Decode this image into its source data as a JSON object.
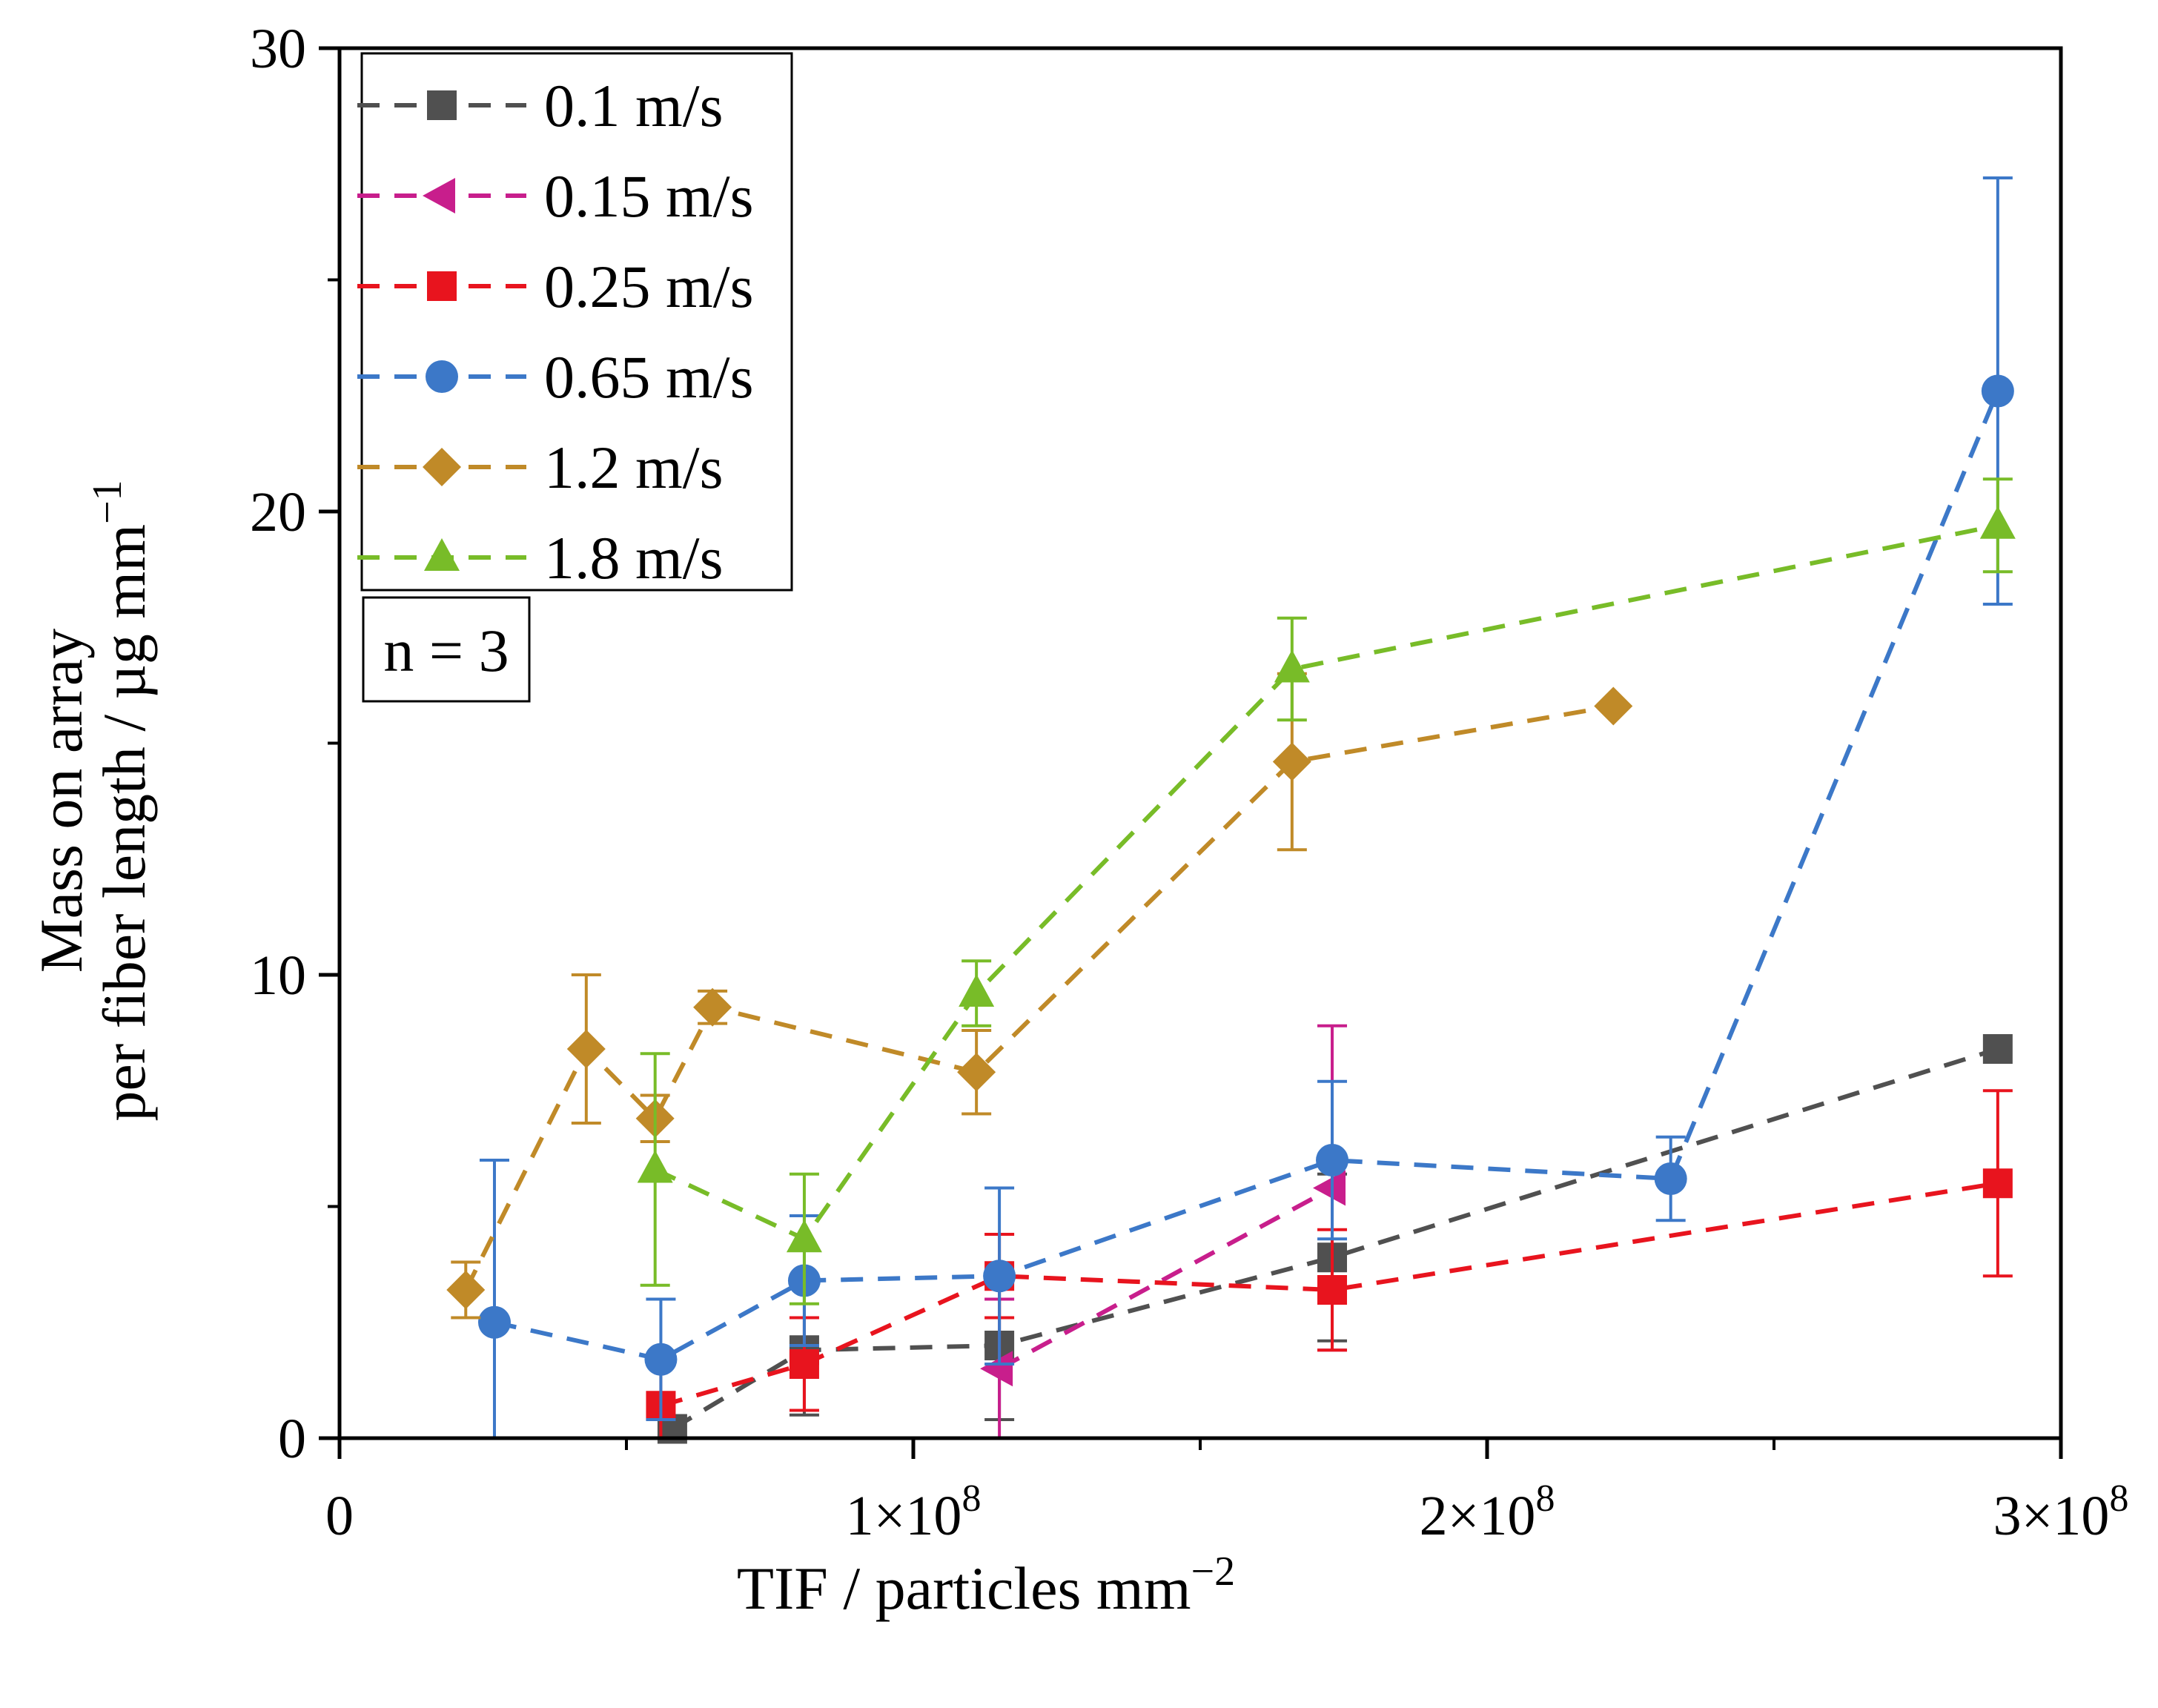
{
  "chart_data": {
    "type": "scatter",
    "title": "",
    "xlabel_main": "TIF / particles mm",
    "xlabel_sup": "−2",
    "ylabel_line1": "Mass on array",
    "ylabel_main": "per fiber length / µg mm",
    "ylabel_sup": "−1",
    "xlim": [
      0,
      300000000
    ],
    "ylim": [
      0,
      30
    ],
    "x_ticks": [
      {
        "value": 0,
        "label": "0",
        "sup": ""
      },
      {
        "value": 100000000,
        "label": "1×10",
        "sup": "8"
      },
      {
        "value": 200000000,
        "label": "2×10",
        "sup": "8"
      },
      {
        "value": 300000000,
        "label": "3×10",
        "sup": "8"
      }
    ],
    "x_minor_ticks": [
      50000000,
      150000000,
      250000000
    ],
    "y_ticks": [
      {
        "value": 0,
        "label": "0"
      },
      {
        "value": 10,
        "label": "10"
      },
      {
        "value": 20,
        "label": "20"
      },
      {
        "value": 30,
        "label": "30"
      }
    ],
    "y_minor_ticks": [
      5,
      15,
      25
    ],
    "grid": false,
    "legend_position": "top-left",
    "annotation": "n = 3",
    "series": [
      {
        "name": "0.1 m/s",
        "color": "#505050",
        "marker": "square",
        "points": [
          {
            "x": 58000000,
            "y": 0.2,
            "err": 0
          },
          {
            "x": 81000000,
            "y": 1.9,
            "err": 1.4
          },
          {
            "x": 115000000,
            "y": 2.0,
            "err": 1.6
          },
          {
            "x": 173000000,
            "y": 3.9,
            "err": 1.8
          },
          {
            "x": 289000000,
            "y": 8.4,
            "err": 0
          }
        ]
      },
      {
        "name": "0.15 m/s",
        "color": "#c81e8c",
        "marker": "triangle-left",
        "points": [
          {
            "x": 115000000,
            "y": 1.5,
            "err": 1.5
          },
          {
            "x": 173000000,
            "y": 5.4,
            "err": 3.5
          }
        ]
      },
      {
        "name": "0.25 m/s",
        "color": "#e8141e",
        "marker": "square",
        "points": [
          {
            "x": 56000000,
            "y": 0.7,
            "err": 1.0
          },
          {
            "x": 81000000,
            "y": 1.6,
            "err": 1.0
          },
          {
            "x": 115000000,
            "y": 3.5,
            "err": 0.9
          },
          {
            "x": 173000000,
            "y": 3.2,
            "err": 1.3
          },
          {
            "x": 289000000,
            "y": 5.5,
            "err": 2.0
          }
        ]
      },
      {
        "name": "0.65 m/s",
        "color": "#3c78c8",
        "marker": "circle",
        "points": [
          {
            "x": 27000000,
            "y": 2.5,
            "err": 3.5
          },
          {
            "x": 56000000,
            "y": 1.7,
            "err": 1.3
          },
          {
            "x": 81000000,
            "y": 3.4,
            "err": 1.4
          },
          {
            "x": 115000000,
            "y": 3.5,
            "err": 1.9
          },
          {
            "x": 173000000,
            "y": 6.0,
            "err": 1.7
          },
          {
            "x": 232000000,
            "y": 5.6,
            "err": 0.9
          },
          {
            "x": 289000000,
            "y": 22.6,
            "err": 4.6
          }
        ]
      },
      {
        "name": "1.2 m/s",
        "color": "#c08a28",
        "marker": "diamond",
        "points": [
          {
            "x": 22000000,
            "y": 3.2,
            "err": 0.6
          },
          {
            "x": 43000000,
            "y": 8.4,
            "err": 1.6
          },
          {
            "x": 55000000,
            "y": 6.9,
            "err": 0.5
          },
          {
            "x": 65000000,
            "y": 9.3,
            "err": 0.35
          },
          {
            "x": 111000000,
            "y": 7.9,
            "err": 0.9
          },
          {
            "x": 166000000,
            "y": 14.6,
            "err": 1.9
          },
          {
            "x": 222000000,
            "y": 15.8,
            "err": 0
          }
        ]
      },
      {
        "name": "1.8 m/s",
        "color": "#78bc28",
        "marker": "triangle-up",
        "points": [
          {
            "x": 55000000,
            "y": 5.8,
            "err": 2.5
          },
          {
            "x": 81000000,
            "y": 4.3,
            "err": 1.4
          },
          {
            "x": 111000000,
            "y": 9.6,
            "err": 0.7
          },
          {
            "x": 166000000,
            "y": 16.6,
            "err": 1.1
          },
          {
            "x": 289000000,
            "y": 19.7,
            "err": 1.0
          }
        ]
      }
    ]
  }
}
